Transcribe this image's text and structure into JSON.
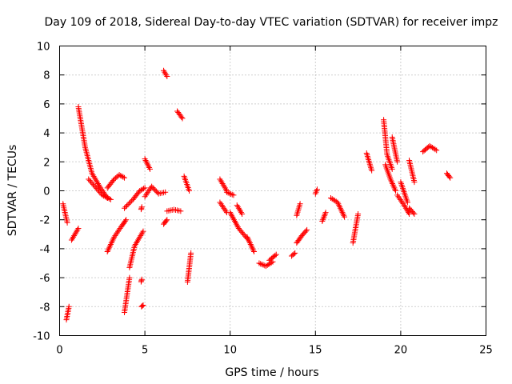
{
  "chart_data": {
    "type": "scatter",
    "title": "Day 109 of 2018, Sidereal Day-to-day VTEC variation (SDTVAR) for receiver impz",
    "xlabel": "GPS time / hours",
    "ylabel": "SDTVAR / TECUs",
    "xlim": [
      0,
      25
    ],
    "ylim": [
      -10,
      10
    ],
    "xticks": [
      0,
      5,
      10,
      15,
      20,
      25
    ],
    "yticks": [
      -10,
      -8,
      -6,
      -4,
      -2,
      0,
      2,
      4,
      6,
      8,
      10
    ],
    "grid": true,
    "marker": "+",
    "series_color": "#ff0000",
    "segments": [
      {
        "x": [
          0.2,
          0.45
        ],
        "y": [
          -0.9,
          -2.2
        ]
      },
      {
        "x": [
          0.4,
          0.55
        ],
        "y": [
          -8.9,
          -8.0
        ]
      },
      {
        "x": [
          0.7,
          1.1
        ],
        "y": [
          -3.4,
          -2.6
        ]
      },
      {
        "x": [
          1.1,
          1.5,
          1.9,
          2.4,
          2.8
        ],
        "y": [
          5.8,
          3.0,
          1.2,
          0.2,
          -0.5
        ]
      },
      {
        "x": [
          1.7,
          2.5,
          3.0
        ],
        "y": [
          0.8,
          -0.3,
          -0.6
        ]
      },
      {
        "x": [
          2.8,
          3.2,
          3.6,
          3.9
        ],
        "y": [
          -4.2,
          -3.2,
          -2.5,
          -2.0
        ]
      },
      {
        "x": [
          2.8,
          3.2,
          3.5,
          3.8
        ],
        "y": [
          0.2,
          0.8,
          1.1,
          0.9
        ]
      },
      {
        "x": [
          3.8,
          4.1
        ],
        "y": [
          -8.4,
          -6.0
        ]
      },
      {
        "x": [
          3.8,
          4.3,
          4.7,
          5.0
        ],
        "y": [
          -1.2,
          -0.6,
          0.0,
          0.2
        ]
      },
      {
        "x": [
          4.1,
          4.4,
          4.7,
          4.9
        ],
        "y": [
          -5.3,
          -3.8,
          -3.2,
          -2.8
        ]
      },
      {
        "x": [
          4.8,
          4.9
        ],
        "y": [
          -8.0,
          -7.9
        ]
      },
      {
        "x": [
          4.8
        ],
        "y": [
          -6.2
        ]
      },
      {
        "x": [
          4.8
        ],
        "y": [
          -1.2
        ]
      },
      {
        "x": [
          5.0,
          5.3
        ],
        "y": [
          2.2,
          1.5
        ]
      },
      {
        "x": [
          5.0,
          5.4,
          5.8,
          6.2
        ],
        "y": [
          -0.4,
          0.3,
          -0.2,
          -0.1
        ]
      },
      {
        "x": [
          6.1,
          6.3
        ],
        "y": [
          8.3,
          7.9
        ]
      },
      {
        "x": [
          6.1,
          6.3
        ],
        "y": [
          -2.3,
          -2.0
        ]
      },
      {
        "x": [
          6.3,
          6.7,
          7.1
        ],
        "y": [
          -1.4,
          -1.3,
          -1.4
        ]
      },
      {
        "x": [
          6.9,
          7.2
        ],
        "y": [
          5.5,
          5.0
        ]
      },
      {
        "x": [
          7.3,
          7.6
        ],
        "y": [
          1.0,
          0.0
        ]
      },
      {
        "x": [
          7.5,
          7.7
        ],
        "y": [
          -6.3,
          -4.3
        ]
      },
      {
        "x": [
          9.4,
          9.8
        ],
        "y": [
          0.8,
          0.0
        ]
      },
      {
        "x": [
          9.4,
          9.8
        ],
        "y": [
          -0.8,
          -1.5
        ]
      },
      {
        "x": [
          9.8,
          10.2
        ],
        "y": [
          -0.1,
          -0.3
        ]
      },
      {
        "x": [
          10.0,
          10.5,
          11.0
        ],
        "y": [
          -1.5,
          -2.6,
          -3.3
        ]
      },
      {
        "x": [
          10.4,
          10.7
        ],
        "y": [
          -1.0,
          -1.6
        ]
      },
      {
        "x": [
          11.0,
          11.4
        ],
        "y": [
          -3.2,
          -4.2
        ]
      },
      {
        "x": [
          11.7,
          12.1,
          12.5
        ],
        "y": [
          -5.0,
          -5.2,
          -4.9
        ]
      },
      {
        "x": [
          12.3,
          12.7
        ],
        "y": [
          -4.8,
          -4.4
        ]
      },
      {
        "x": [
          13.6,
          13.8
        ],
        "y": [
          -4.5,
          -4.3
        ]
      },
      {
        "x": [
          13.9,
          14.2,
          14.5
        ],
        "y": [
          -3.6,
          -3.1,
          -2.7
        ]
      },
      {
        "x": [
          13.9,
          14.1
        ],
        "y": [
          -1.7,
          -0.9
        ]
      },
      {
        "x": [
          15.0,
          15.1
        ],
        "y": [
          -0.2,
          0.1
        ]
      },
      {
        "x": [
          15.4,
          15.6
        ],
        "y": [
          -2.1,
          -1.5
        ]
      },
      {
        "x": [
          15.9,
          16.3,
          16.7
        ],
        "y": [
          -0.5,
          -0.8,
          -1.8
        ]
      },
      {
        "x": [
          17.2,
          17.5
        ],
        "y": [
          -3.6,
          -1.6
        ]
      },
      {
        "x": [
          18.0,
          18.3
        ],
        "y": [
          2.6,
          1.4
        ]
      },
      {
        "x": [
          19.0,
          19.2,
          19.5
        ],
        "y": [
          4.9,
          2.5,
          1.5
        ]
      },
      {
        "x": [
          19.1,
          19.4,
          19.7
        ],
        "y": [
          1.8,
          0.8,
          0.0
        ]
      },
      {
        "x": [
          19.5,
          19.8
        ],
        "y": [
          3.7,
          2.0
        ]
      },
      {
        "x": [
          19.8,
          20.2,
          20.5
        ],
        "y": [
          -0.3,
          -1.0,
          -1.6
        ]
      },
      {
        "x": [
          20.0,
          20.4
        ],
        "y": [
          0.6,
          -0.8
        ]
      },
      {
        "x": [
          20.5,
          20.8
        ],
        "y": [
          2.1,
          0.6
        ]
      },
      {
        "x": [
          20.5,
          20.8
        ],
        "y": [
          -1.2,
          -1.6
        ]
      },
      {
        "x": [
          21.3,
          21.7,
          22.1
        ],
        "y": [
          2.7,
          3.1,
          2.8
        ]
      },
      {
        "x": [
          22.7,
          22.9
        ],
        "y": [
          1.2,
          0.9
        ]
      }
    ]
  }
}
